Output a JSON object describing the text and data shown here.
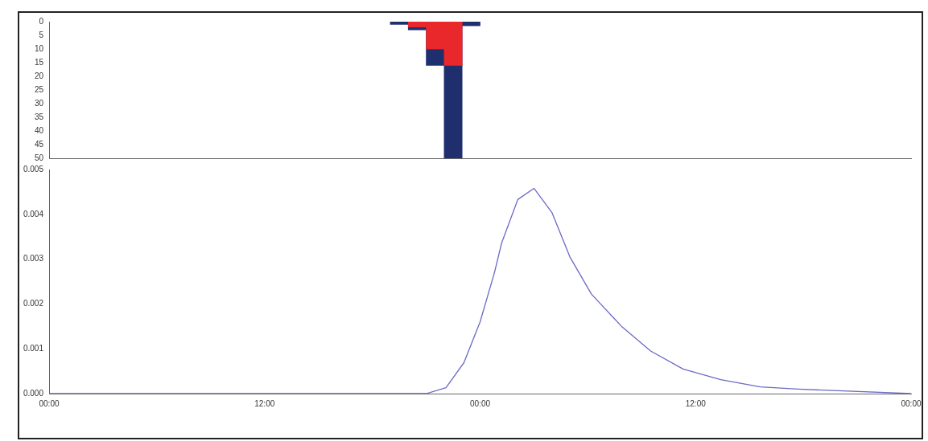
{
  "chart_data": [
    {
      "type": "bar",
      "xlim": [
        "2000-01-01T00:00",
        "2000-01-03T00:00"
      ],
      "ylim": [
        50,
        0
      ],
      "yticks": [
        0,
        5,
        10,
        15,
        20,
        25,
        30,
        35,
        40,
        45,
        50
      ],
      "tick_labels": "y",
      "grid": false,
      "legend": false,
      "series": [
        {
          "color": "#1f2f6e",
          "x": [
            "2000-01-01T19:30",
            "2000-01-01T20:30",
            "2000-01-01T21:30",
            "2000-01-01T22:30",
            "2000-01-01T23:30"
          ],
          "values": [
            1,
            3,
            16,
            50,
            1.5
          ]
        },
        {
          "color": "#e8282b",
          "x": [
            "2000-01-01T20:30",
            "2000-01-01T21:30",
            "2000-01-01T22:30"
          ],
          "values": [
            2,
            10,
            16
          ]
        }
      ]
    },
    {
      "type": "line",
      "xlim": [
        "2000-01-01T00:00",
        "2000-01-03T00:00"
      ],
      "xticks": [
        {
          "value": "2000-01-01T00:00",
          "label": "00:00"
        },
        {
          "value": "2000-01-01T12:00",
          "label": "12:00"
        },
        {
          "value": "2000-01-02T00:00",
          "label": "00:00"
        },
        {
          "value": "2000-01-02T12:00",
          "label": "12:00"
        },
        {
          "value": "2000-01-03T00:00",
          "label": "00:00"
        }
      ],
      "ylim": [
        0,
        0.005
      ],
      "yticks": [
        {
          "value": 0,
          "label": "0.000"
        },
        {
          "value": 0.001,
          "label": "0.001"
        },
        {
          "value": 0.002,
          "label": "0.002"
        },
        {
          "value": 0.003,
          "label": "0.003"
        },
        {
          "value": 0.004,
          "label": "0.004"
        },
        {
          "value": 0.005,
          "label": "0.005"
        }
      ],
      "grid": false,
      "legend": false,
      "marker": "none",
      "line_style": "solid",
      "series": [
        {
          "color": "#6a6ac8",
          "x": [
            "2000-01-01T00:00",
            "2000-01-01T21:00",
            "2000-01-01T22:06",
            "2000-01-01T23:06",
            "2000-01-02T00:00",
            "2000-01-02T00:48",
            "2000-01-02T01:12",
            "2000-01-02T02:06",
            "2000-01-02T03:00",
            "2000-01-02T04:00",
            "2000-01-02T05:00",
            "2000-01-02T06:12",
            "2000-01-02T07:54",
            "2000-01-02T09:30",
            "2000-01-02T11:18",
            "2000-01-02T13:24",
            "2000-01-02T15:36",
            "2000-01-02T17:42",
            "2000-01-03T00:00"
          ],
          "values": [
            0,
            0,
            0.00013,
            0.00069,
            0.0016,
            0.0027,
            0.00336,
            0.00433,
            0.00458,
            0.00404,
            0.00305,
            0.00222,
            0.00149,
            0.00095,
            0.00055,
            0.00031,
            0.00015,
            0.0001,
            0
          ]
        }
      ]
    }
  ]
}
